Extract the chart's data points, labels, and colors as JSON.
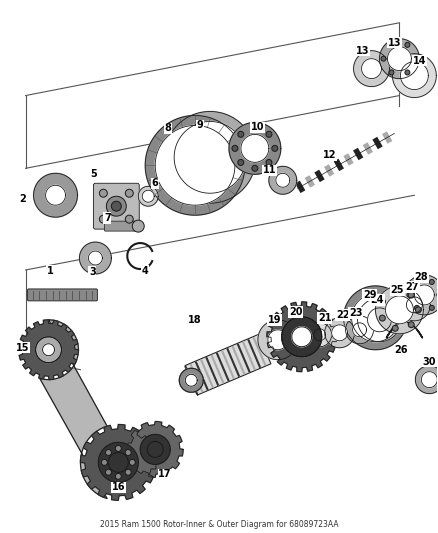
{
  "title": "2015 Ram 1500 Rotor-Inner & Outer Diagram for 68089723AA",
  "background_color": "#ffffff",
  "fig_width": 4.38,
  "fig_height": 5.33,
  "dpi": 100
}
